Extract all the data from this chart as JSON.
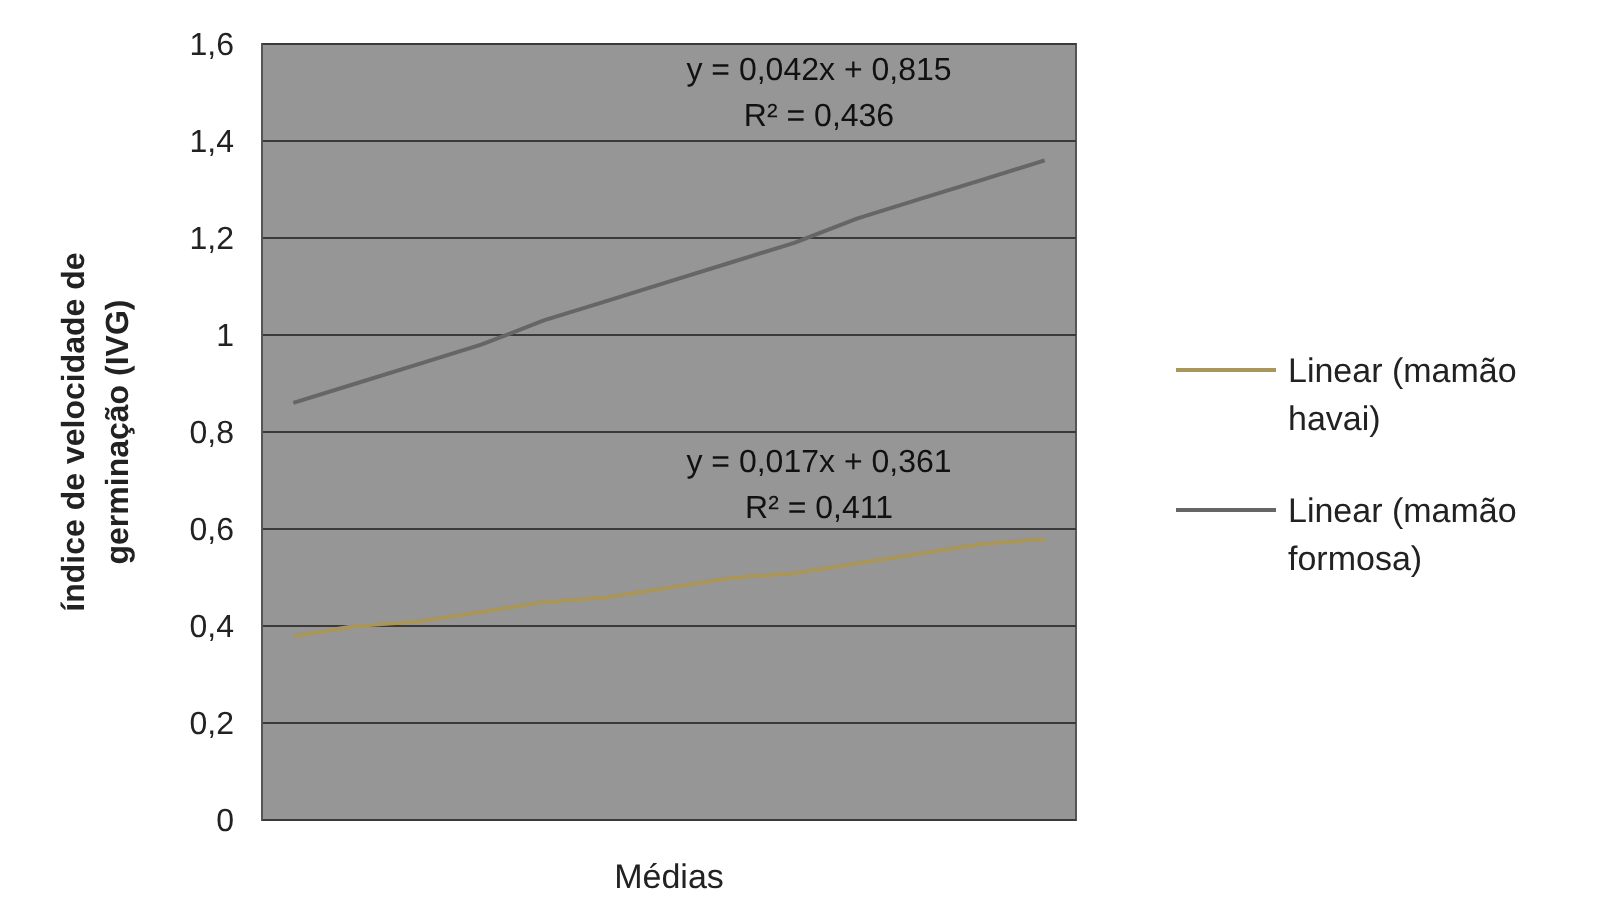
{
  "chart_data": {
    "type": "line",
    "xlabel": "Médias",
    "ylabel": "índice de velocidade de germinação (IVG)",
    "categories": [
      null,
      null,
      null,
      null,
      null,
      null,
      null,
      null,
      null,
      null,
      null,
      null,
      null
    ],
    "ylim": [
      0,
      1.6
    ],
    "yticks": [
      0,
      {
        "value": 0.2,
        "label": "0,2"
      },
      {
        "value": 0.4,
        "label": "0,4"
      },
      {
        "value": 0.6,
        "label": "0,6"
      },
      {
        "value": 0.8,
        "label": "0,8"
      },
      1,
      {
        "value": 1.2,
        "label": "1,2"
      },
      {
        "value": 1.4,
        "label": "1,4"
      },
      {
        "value": 1.6,
        "label": "1,6"
      }
    ],
    "tick_labels": "y",
    "grid": "y",
    "legend": "right",
    "marker": "none",
    "line_style": "solid",
    "series": [
      {
        "name": "Linear (mamão havai)",
        "color": "#a8965a",
        "values": [
          0.38,
          0.4,
          0.41,
          0.43,
          0.45,
          0.46,
          0.48,
          0.5,
          0.51,
          0.53,
          0.55,
          0.57,
          0.58
        ]
      },
      {
        "name": "Linear (mamão formosa)",
        "color": "#666666",
        "values": [
          0.86,
          0.9,
          0.94,
          0.98,
          1.03,
          1.07,
          1.11,
          1.15,
          1.19,
          1.24,
          1.28,
          1.32,
          1.36
        ]
      }
    ],
    "annotations": [
      "y = 0,042x + 0,815\nR² = 0,436",
      "y = 0,017x + 0,361\nR² = 0,411"
    ]
  }
}
